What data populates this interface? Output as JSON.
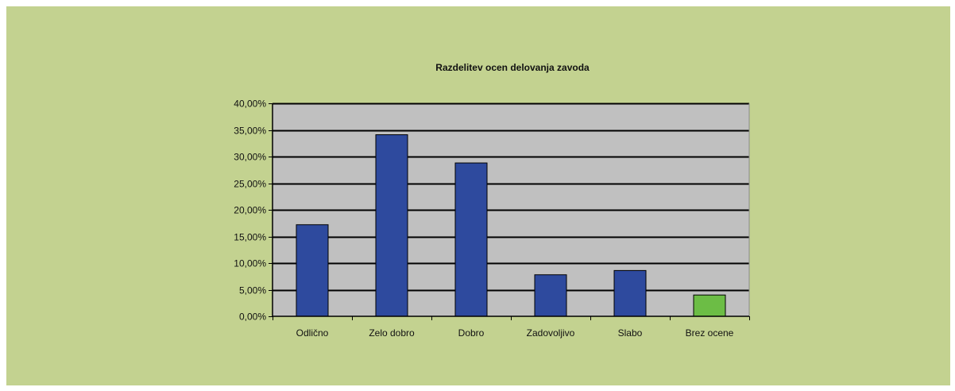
{
  "chart_data": {
    "type": "bar",
    "title": "Razdelitev ocen delovanja zavoda",
    "xlabel": "",
    "ylabel": "",
    "categories": [
      "Odlično",
      "Zelo dobro",
      "Dobro",
      "Zadovoljivo",
      "Slabo",
      "Brez ocene"
    ],
    "values": [
      17.2,
      34.1,
      28.8,
      7.8,
      8.6,
      4.0
    ],
    "value_format": "percent_2dp",
    "ylim": [
      0,
      40
    ],
    "yticks": [
      0,
      5,
      10,
      15,
      20,
      25,
      30,
      35,
      40
    ],
    "ytick_labels": [
      "0,00%",
      "5,00%",
      "10,00%",
      "15,00%",
      "20,00%",
      "25,00%",
      "30,00%",
      "35,00%",
      "40,00%"
    ],
    "grid": true,
    "legend": "none",
    "colors": {
      "bar": "#2e4a9e",
      "bar_highlight": "#6cbd45",
      "plot_bg": "#c0c0c0",
      "panel_bg": "#c3d290",
      "gridline": "#000000"
    },
    "highlight_index": 5
  }
}
